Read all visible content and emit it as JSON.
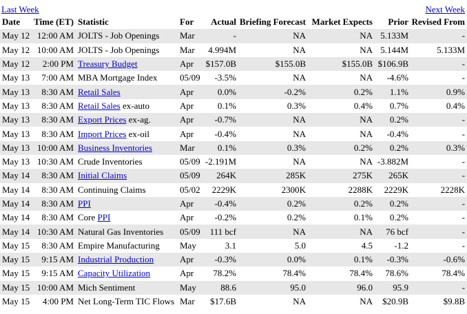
{
  "nav": {
    "prev_label": "Last Week",
    "next_label": "Next Week"
  },
  "headers": [
    "Date",
    "Time (ET)",
    "Statistic",
    "For",
    "Actual",
    "Briefing Forecast",
    "Market Expects",
    "Prior",
    "Revised From"
  ],
  "rows": [
    {
      "date": "May 12",
      "time": "12:00 AM",
      "link": "",
      "stat": "JOLTS - Job Openings",
      "for": "Mar",
      "actual": "-",
      "briefing": "NA",
      "market": "NA",
      "prior": "5.133M",
      "revised": "-"
    },
    {
      "date": "May 12",
      "time": "10:00 AM",
      "link": "",
      "stat": "JOLTS - Job Openings",
      "for": "Mar",
      "actual": "4.994M",
      "briefing": "NA",
      "market": "NA",
      "prior": "5.144M",
      "revised": "5.133M"
    },
    {
      "date": "May 12",
      "time": "2:00 PM",
      "link": "Treasury Budget",
      "stat": "",
      "for": "Apr",
      "actual": "$157.0B",
      "briefing": "$155.0B",
      "market": "$155.0B",
      "prior": "$106.9B",
      "revised": "-"
    },
    {
      "date": "May 13",
      "time": "7:00 AM",
      "link": "",
      "stat": "MBA Mortgage Index",
      "for": "05/09",
      "actual": "-3.5%",
      "briefing": "NA",
      "market": "NA",
      "prior": "-4.6%",
      "revised": "-"
    },
    {
      "date": "May 13",
      "time": "8:30 AM",
      "link": "Retail Sales",
      "stat": "",
      "for": "Apr",
      "actual": "0.0%",
      "briefing": "-0.2%",
      "market": "0.2%",
      "prior": "1.1%",
      "revised": "0.9%"
    },
    {
      "date": "May 13",
      "time": "8:30 AM",
      "link": "Retail Sales",
      "stat": " ex-auto",
      "for": "Apr",
      "actual": "0.1%",
      "briefing": "0.3%",
      "market": "0.4%",
      "prior": "0.7%",
      "revised": "0.4%"
    },
    {
      "date": "May 13",
      "time": "8:30 AM",
      "link": "Export Prices",
      "stat": " ex-ag.",
      "for": "Apr",
      "actual": "-0.7%",
      "briefing": "NA",
      "market": "NA",
      "prior": "0.2%",
      "revised": "-"
    },
    {
      "date": "May 13",
      "time": "8:30 AM",
      "link": "Import Prices",
      "stat": " ex-oil",
      "for": "Apr",
      "actual": "-0.4%",
      "briefing": "NA",
      "market": "NA",
      "prior": "-0.4%",
      "revised": "-"
    },
    {
      "date": "May 13",
      "time": "10:00 AM",
      "link": "Business Inventories",
      "stat": "",
      "for": "Mar",
      "actual": "0.1%",
      "briefing": "0.3%",
      "market": "0.2%",
      "prior": "0.2%",
      "revised": "0.3%"
    },
    {
      "date": "May 13",
      "time": "10:30 AM",
      "link": "",
      "stat": "Crude Inventories",
      "for": "05/09",
      "actual": "-2.191M",
      "briefing": "NA",
      "market": "NA",
      "prior": "-3.882M",
      "revised": "-"
    },
    {
      "date": "May 14",
      "time": "8:30 AM",
      "link": "Initial Claims",
      "stat": "",
      "for": "05/09",
      "actual": "264K",
      "briefing": "285K",
      "market": "275K",
      "prior": "265K",
      "revised": "-"
    },
    {
      "date": "May 14",
      "time": "8:30 AM",
      "link": "",
      "stat": "Continuing Claims",
      "for": "05/02",
      "actual": "2229K",
      "briefing": "2300K",
      "market": "2288K",
      "prior": "2229K",
      "revised": "2228K"
    },
    {
      "date": "May 14",
      "time": "8:30 AM",
      "link": "PPI",
      "stat": "",
      "for": "Apr",
      "actual": "-0.4%",
      "briefing": "0.2%",
      "market": "0.2%",
      "prior": "0.2%",
      "revised": "-"
    },
    {
      "date": "May 14",
      "time": "8:30 AM",
      "link": "PPI",
      "stat": "Core ",
      "for": "Apr",
      "actual": "-0.2%",
      "briefing": "0.2%",
      "market": "0.1%",
      "prior": "0.2%",
      "revised": "-"
    },
    {
      "date": "May 14",
      "time": "10:30 AM",
      "link": "",
      "stat": "Natural Gas Inventories",
      "for": "05/09",
      "actual": "111 bcf",
      "briefing": "NA",
      "market": "NA",
      "prior": "76 bcf",
      "revised": "-"
    },
    {
      "date": "May 15",
      "time": "8:30 AM",
      "link": "",
      "stat": "Empire Manufacturing",
      "for": "May",
      "actual": "3.1",
      "briefing": "5.0",
      "market": "4.5",
      "prior": "-1.2",
      "revised": "-"
    },
    {
      "date": "May 15",
      "time": "9:15 AM",
      "link": "Industrial Production",
      "stat": "",
      "for": "Apr",
      "actual": "-0.3%",
      "briefing": "0.0%",
      "market": "0.1%",
      "prior": "-0.3%",
      "revised": "-0.6%"
    },
    {
      "date": "May 15",
      "time": "9:15 AM",
      "link": "Capacity Utilization",
      "stat": "",
      "for": "Apr",
      "actual": "78.2%",
      "briefing": "78.4%",
      "market": "78.4%",
      "prior": "78.6%",
      "revised": "78.4%"
    },
    {
      "date": "May 15",
      "time": "10:00 AM",
      "link": "",
      "stat": "Mich Sentiment",
      "for": "May",
      "actual": "88.6",
      "briefing": "95.0",
      "market": "96.0",
      "prior": "95.9",
      "revised": "-"
    },
    {
      "date": "May 15",
      "time": "4:00 PM",
      "link": "",
      "stat": "Net Long-Term TIC Flows",
      "for": "Mar",
      "actual": "$17.6B",
      "briefing": "NA",
      "market": "NA",
      "prior": "$20.9B",
      "revised": "$9.8B"
    }
  ],
  "colors": {
    "link": "#0000cc",
    "row_shade": "#e7e7e7"
  }
}
